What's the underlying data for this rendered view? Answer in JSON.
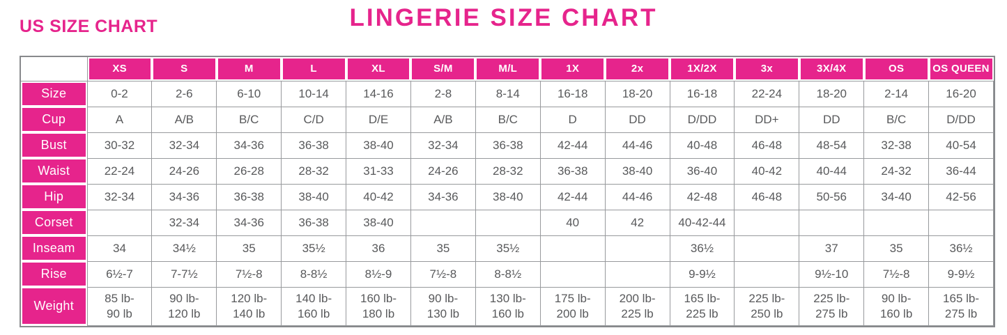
{
  "page": {
    "title": "LINGERIE SIZE CHART",
    "subtitle": "US SIZE CHART"
  },
  "colors": {
    "accent": "#e6248c",
    "grid": "#97999c",
    "frame": "#87898c",
    "text": "#58595b"
  },
  "chart_data": {
    "type": "table",
    "title": "LINGERIE SIZE CHART",
    "subtitle": "US SIZE CHART",
    "columns": [
      "XS",
      "S",
      "M",
      "L",
      "XL",
      "S/M",
      "M/L",
      "1X",
      "2x",
      "1X/2X",
      "3x",
      "3X/4X",
      "OS",
      "OS QUEEN"
    ],
    "rows": [
      {
        "label": "Size",
        "values": [
          "0-2",
          "2-6",
          "6-10",
          "10-14",
          "14-16",
          "2-8",
          "8-14",
          "16-18",
          "18-20",
          "16-18",
          "22-24",
          "18-20",
          "2-14",
          "16-20"
        ]
      },
      {
        "label": "Cup",
        "values": [
          "A",
          "A/B",
          "B/C",
          "C/D",
          "D/E",
          "A/B",
          "B/C",
          "D",
          "DD",
          "D/DD",
          "DD+",
          "DD",
          "B/C",
          "D/DD"
        ]
      },
      {
        "label": "Bust",
        "values": [
          "30-32",
          "32-34",
          "34-36",
          "36-38",
          "38-40",
          "32-34",
          "36-38",
          "42-44",
          "44-46",
          "40-48",
          "46-48",
          "48-54",
          "32-38",
          "40-54"
        ]
      },
      {
        "label": "Waist",
        "values": [
          "22-24",
          "24-26",
          "26-28",
          "28-32",
          "31-33",
          "24-26",
          "28-32",
          "36-38",
          "38-40",
          "36-40",
          "40-42",
          "40-44",
          "24-32",
          "36-44"
        ]
      },
      {
        "label": "Hip",
        "values": [
          "32-34",
          "34-36",
          "36-38",
          "38-40",
          "40-42",
          "34-36",
          "38-40",
          "42-44",
          "44-46",
          "42-48",
          "46-48",
          "50-56",
          "34-40",
          "42-56"
        ]
      },
      {
        "label": "Corset",
        "values": [
          "",
          "32-34",
          "34-36",
          "36-38",
          "38-40",
          "",
          "",
          "40",
          "42",
          "40-42-44",
          "",
          "",
          "",
          ""
        ]
      },
      {
        "label": "Inseam",
        "values": [
          "34",
          "34½",
          "35",
          "35½",
          "36",
          "35",
          "35½",
          "",
          "",
          "36½",
          "",
          "37",
          "35",
          "36½"
        ]
      },
      {
        "label": "Rise",
        "values": [
          "6½-7",
          "7-7½",
          "7½-8",
          "8-8½",
          "8½-9",
          "7½-8",
          "8-8½",
          "",
          "",
          "9-9½",
          "",
          "9½-10",
          "7½-8",
          "9-9½"
        ]
      },
      {
        "label": "Weight",
        "values": [
          "85 lb-\n90 lb",
          "90 lb-\n120 lb",
          "120 lb-\n140 lb",
          "140 lb-\n160 lb",
          "160 lb-\n180 lb",
          "90 lb-\n130 lb",
          "130 lb-\n160 lb",
          "175 lb-\n200 lb",
          "200 lb-\n225 lb",
          "165 lb-\n225 lb",
          "225 lb-\n250 lb",
          "225 lb-\n275 lb",
          "90 lb-\n160 lb",
          "165 lb-\n275 lb"
        ]
      }
    ]
  }
}
